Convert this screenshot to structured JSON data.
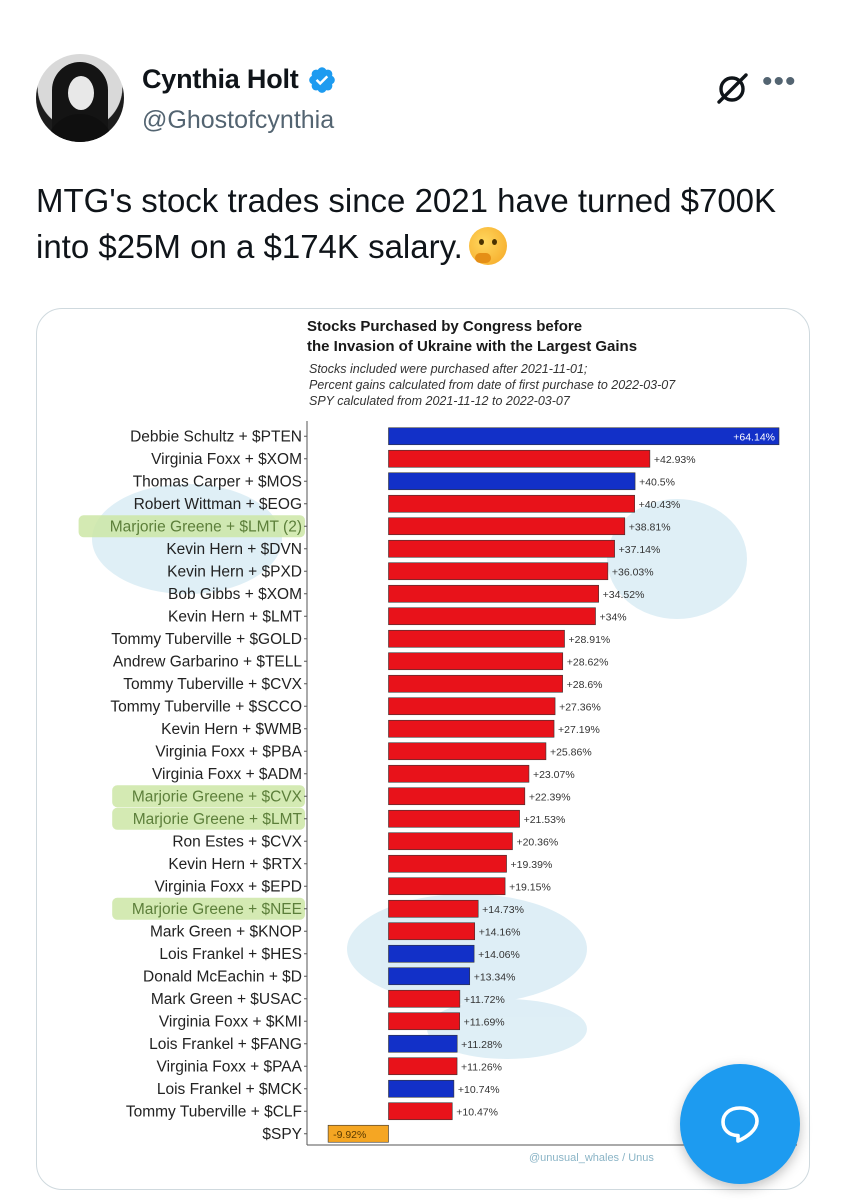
{
  "tweet": {
    "display_name": "Cynthia Holt",
    "handle": "@Ghostofcynthia",
    "text": "MTG's stock trades since 2021 have turned $700K into $25M on a $174K salary.",
    "emoji": "thinking-face",
    "verified_color": "#1d9bf0"
  },
  "icons": {
    "grok": "grok-icon",
    "more": "more-icon",
    "reply": "reply-bubble-icon"
  },
  "chart_data": {
    "type": "bar",
    "orientation": "horizontal",
    "title_line1": "Stocks Purchased by Congress before",
    "title_line2": "the Invasion of Ukraine with the Largest Gains",
    "subtitle_lines": [
      "Stocks included were purchased after 2021-11-01;",
      "Percent gains calculated from date of first purchase to 2022-03-07",
      "SPY calculated from 2021-11-12 to 2022-03-07"
    ],
    "credit": "@unusual_whales / Unus",
    "xlim": [
      -10,
      70
    ],
    "colors": {
      "D": "#1230c8",
      "R": "#e8121a",
      "SPY": "#f5a623",
      "highlight": "#cde6a6"
    },
    "bars": [
      {
        "label": "Debbie Schultz + $PTEN",
        "value": 64.14,
        "text": "+64.14%",
        "party": "D",
        "highlight": false
      },
      {
        "label": "Virginia Foxx + $XOM",
        "value": 42.93,
        "text": "+42.93%",
        "party": "R",
        "highlight": false
      },
      {
        "label": "Thomas Carper + $MOS",
        "value": 40.5,
        "text": "+40.5%",
        "party": "D",
        "highlight": false
      },
      {
        "label": "Robert Wittman + $EOG",
        "value": 40.43,
        "text": "+40.43%",
        "party": "R",
        "highlight": false
      },
      {
        "label": "Marjorie Greene + $LMT (2)",
        "value": 38.81,
        "text": "+38.81%",
        "party": "R",
        "highlight": true
      },
      {
        "label": "Kevin Hern + $DVN",
        "value": 37.14,
        "text": "+37.14%",
        "party": "R",
        "highlight": false
      },
      {
        "label": "Kevin Hern + $PXD",
        "value": 36.03,
        "text": "+36.03%",
        "party": "R",
        "highlight": false
      },
      {
        "label": "Bob Gibbs + $XOM",
        "value": 34.52,
        "text": "+34.52%",
        "party": "R",
        "highlight": false
      },
      {
        "label": "Kevin Hern + $LMT",
        "value": 34,
        "text": "+34%",
        "party": "R",
        "highlight": false
      },
      {
        "label": "Tommy Tuberville + $GOLD",
        "value": 28.91,
        "text": "+28.91%",
        "party": "R",
        "highlight": false
      },
      {
        "label": "Andrew Garbarino + $TELL",
        "value": 28.62,
        "text": "+28.62%",
        "party": "R",
        "highlight": false
      },
      {
        "label": "Tommy Tuberville + $CVX",
        "value": 28.6,
        "text": "+28.6%",
        "party": "R",
        "highlight": false
      },
      {
        "label": "Tommy Tuberville + $SCCO",
        "value": 27.36,
        "text": "+27.36%",
        "party": "R",
        "highlight": false
      },
      {
        "label": "Kevin Hern + $WMB",
        "value": 27.19,
        "text": "+27.19%",
        "party": "R",
        "highlight": false
      },
      {
        "label": "Virginia Foxx + $PBA",
        "value": 25.86,
        "text": "+25.86%",
        "party": "R",
        "highlight": false
      },
      {
        "label": "Virginia Foxx + $ADM",
        "value": 23.07,
        "text": "+23.07%",
        "party": "R",
        "highlight": false
      },
      {
        "label": "Marjorie Greene + $CVX",
        "value": 22.39,
        "text": "+22.39%",
        "party": "R",
        "highlight": true
      },
      {
        "label": "Marjorie Greene + $LMT",
        "value": 21.53,
        "text": "+21.53%",
        "party": "R",
        "highlight": true
      },
      {
        "label": "Ron Estes + $CVX",
        "value": 20.36,
        "text": "+20.36%",
        "party": "R",
        "highlight": false
      },
      {
        "label": "Kevin Hern + $RTX",
        "value": 19.39,
        "text": "+19.39%",
        "party": "R",
        "highlight": false
      },
      {
        "label": "Virginia Foxx + $EPD",
        "value": 19.15,
        "text": "+19.15%",
        "party": "R",
        "highlight": false
      },
      {
        "label": "Marjorie Greene + $NEE",
        "value": 14.73,
        "text": "+14.73%",
        "party": "R",
        "highlight": true
      },
      {
        "label": "Mark Green + $KNOP",
        "value": 14.16,
        "text": "+14.16%",
        "party": "R",
        "highlight": false
      },
      {
        "label": "Lois Frankel + $HES",
        "value": 14.06,
        "text": "+14.06%",
        "party": "D",
        "highlight": false
      },
      {
        "label": "Donald McEachin + $D",
        "value": 13.34,
        "text": "+13.34%",
        "party": "D",
        "highlight": false
      },
      {
        "label": "Mark Green + $USAC",
        "value": 11.72,
        "text": "+11.72%",
        "party": "R",
        "highlight": false
      },
      {
        "label": "Virginia Foxx + $KMI",
        "value": 11.69,
        "text": "+11.69%",
        "party": "R",
        "highlight": false
      },
      {
        "label": "Lois Frankel + $FANG",
        "value": 11.28,
        "text": "+11.28%",
        "party": "D",
        "highlight": false
      },
      {
        "label": "Virginia Foxx + $PAA",
        "value": 11.26,
        "text": "+11.26%",
        "party": "R",
        "highlight": false
      },
      {
        "label": "Lois Frankel + $MCK",
        "value": 10.74,
        "text": "+10.74%",
        "party": "D",
        "highlight": false
      },
      {
        "label": "Tommy Tuberville + $CLF",
        "value": 10.47,
        "text": "+10.47%",
        "party": "R",
        "highlight": false
      },
      {
        "label": "$SPY",
        "value": -9.92,
        "text": "-9.92%",
        "party": "SPY",
        "highlight": false
      }
    ]
  }
}
